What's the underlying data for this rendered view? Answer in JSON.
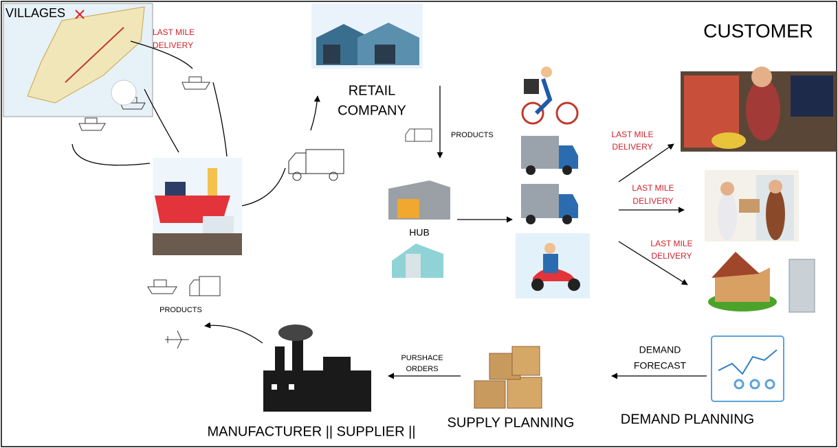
{
  "nodes": {
    "villages": {
      "label": "VILLAGES"
    },
    "retail_company": {
      "label_lines": [
        "RETAIL",
        "COMPANY"
      ]
    },
    "hub": {
      "label": "HUB"
    },
    "customer": {
      "label": "CUSTOMER"
    },
    "manufacturer": {
      "label": "MANUFACTURER || SUPPLIER ||"
    },
    "supply_planning": {
      "label": "SUPPLY PLANNING"
    },
    "demand_planning": {
      "label": "DEMAND PLANNING"
    }
  },
  "edges": [
    {
      "label_lines": [
        "LAST MILE",
        "DELIVERY"
      ]
    },
    {
      "label_lines": [
        "PRODUCTS"
      ]
    },
    {
      "label_lines": [
        "LAST MILE",
        "DELIVERY"
      ]
    },
    {
      "label_lines": [
        "LAST MILE",
        "DELIVERY"
      ]
    },
    {
      "label_lines": [
        "LAST MILE",
        "DELIVERY"
      ]
    },
    {
      "label_lines": [
        "PRODUCTS"
      ]
    },
    {
      "label_lines": [
        "PURSHACE",
        "ORDERS"
      ]
    },
    {
      "label_lines": [
        "DEMAND",
        "FORECAST"
      ]
    }
  ]
}
